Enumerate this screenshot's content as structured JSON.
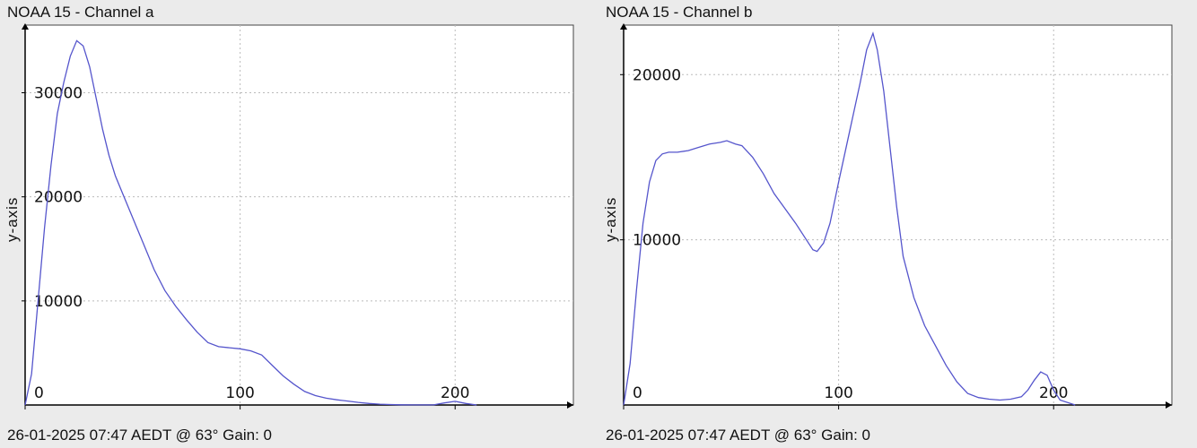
{
  "chart_data": [
    {
      "type": "line",
      "title": "NOAA 15 - Channel a",
      "ylabel": "y-axis",
      "footer": "26-01-2025 07:47 AEDT @ 63° Gain: 0",
      "xlim": [
        0,
        255
      ],
      "ylim": [
        0,
        36500
      ],
      "xticks": [
        0,
        100,
        200
      ],
      "yticks": [
        10000,
        20000,
        30000
      ],
      "grid": true,
      "line_color": "#5555cc",
      "series": [
        {
          "x": [
            0,
            3,
            6,
            9,
            12,
            15,
            18,
            21,
            24,
            27,
            30,
            33,
            36,
            39,
            42,
            45,
            50,
            55,
            60,
            65,
            70,
            75,
            80,
            85,
            90,
            95,
            100,
            105,
            110,
            115,
            120,
            125,
            130,
            135,
            140,
            145,
            150,
            155,
            160,
            165,
            170,
            175,
            180,
            185,
            190,
            195,
            200,
            205,
            210
          ],
          "y": [
            0,
            3000,
            10000,
            17000,
            23000,
            28000,
            31000,
            33500,
            35000,
            34500,
            32500,
            29500,
            26500,
            24000,
            22000,
            20500,
            18000,
            15500,
            13000,
            11000,
            9500,
            8200,
            7000,
            6000,
            5600,
            5500,
            5400,
            5200,
            4800,
            3800,
            2800,
            2000,
            1300,
            900,
            650,
            500,
            380,
            250,
            150,
            80,
            40,
            20,
            10,
            5,
            5,
            200,
            350,
            150,
            0
          ]
        }
      ]
    },
    {
      "type": "line",
      "title": "NOAA 15 - Channel b",
      "ylabel": "y-axis",
      "footer": "26-01-2025 07:47 AEDT @ 63° Gain: 0",
      "xlim": [
        0,
        255
      ],
      "ylim": [
        0,
        23000
      ],
      "xticks": [
        0,
        100,
        200
      ],
      "yticks": [
        10000,
        20000
      ],
      "grid": true,
      "line_color": "#5555cc",
      "series": [
        {
          "x": [
            0,
            3,
            6,
            9,
            12,
            15,
            18,
            21,
            25,
            30,
            35,
            40,
            45,
            48,
            52,
            55,
            60,
            65,
            70,
            75,
            80,
            85,
            88,
            90,
            93,
            96,
            100,
            105,
            110,
            113,
            116,
            118,
            121,
            124,
            127,
            130,
            135,
            140,
            145,
            150,
            155,
            160,
            165,
            170,
            175,
            180,
            185,
            188,
            191,
            194,
            197,
            200,
            203,
            210
          ],
          "y": [
            0,
            2500,
            7000,
            11000,
            13500,
            14800,
            15200,
            15300,
            15300,
            15400,
            15600,
            15800,
            15900,
            16000,
            15800,
            15700,
            15000,
            14000,
            12800,
            11900,
            11000,
            10000,
            9400,
            9300,
            9800,
            11000,
            13500,
            16500,
            19500,
            21500,
            22500,
            21500,
            19000,
            15500,
            12000,
            9000,
            6500,
            4800,
            3600,
            2400,
            1400,
            700,
            450,
            350,
            300,
            350,
            500,
            900,
            1500,
            2000,
            1800,
            900,
            300,
            0
          ]
        }
      ]
    }
  ]
}
